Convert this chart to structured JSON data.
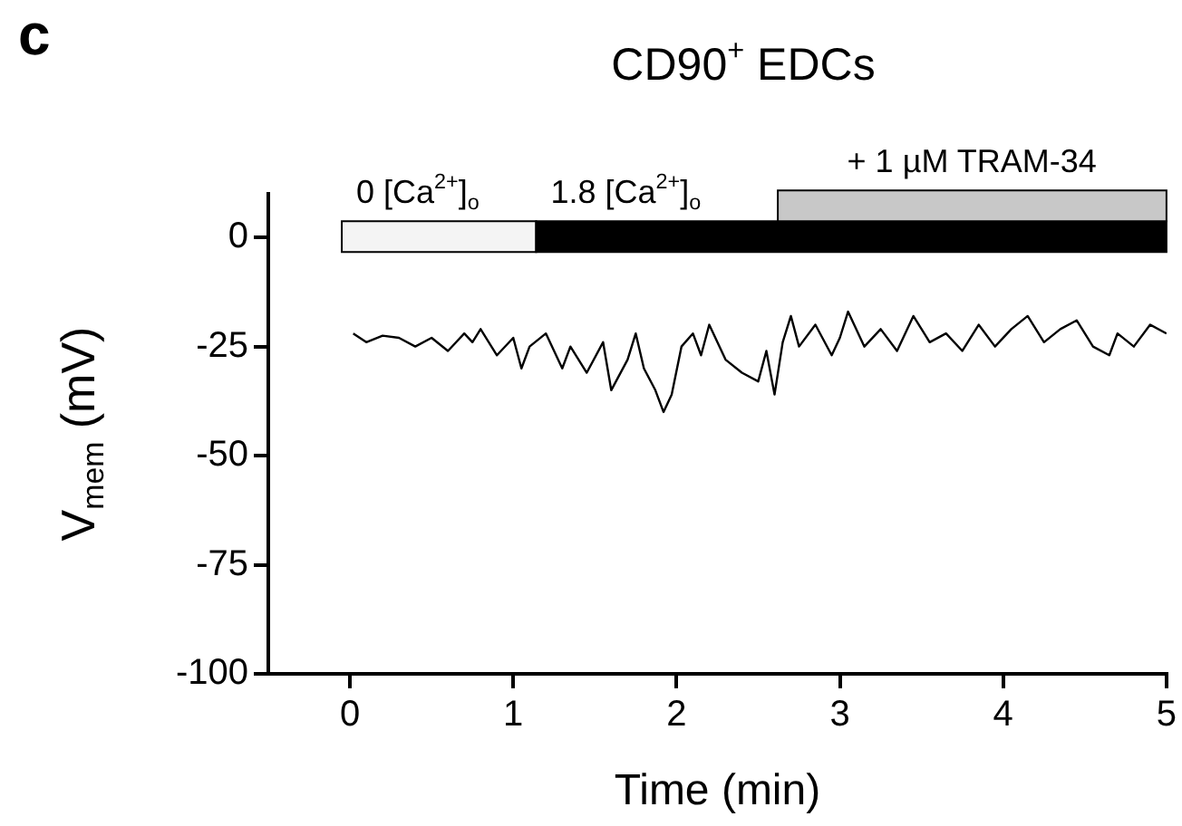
{
  "chart_data": {
    "type": "line",
    "title": "CD90$^{+}$ EDCs",
    "xlabel": "Time (min)",
    "ylabel": "V$_{mem}$ (mV)",
    "annotations": [
      "c"
    ],
    "x": [
      0.02,
      0.1,
      0.2,
      0.3,
      0.4,
      0.5,
      0.6,
      0.7,
      0.75,
      0.8,
      0.9,
      1.0,
      1.05,
      1.1,
      1.2,
      1.3,
      1.35,
      1.45,
      1.55,
      1.6,
      1.7,
      1.75,
      1.8,
      1.87,
      1.92,
      1.97,
      2.03,
      2.1,
      2.15,
      2.2,
      2.3,
      2.4,
      2.5,
      2.55,
      2.6,
      2.65,
      2.7,
      2.75,
      2.85,
      2.95,
      3.0,
      3.05,
      3.15,
      3.25,
      3.35,
      3.45,
      3.55,
      3.65,
      3.75,
      3.85,
      3.95,
      4.05,
      4.15,
      4.25,
      4.35,
      4.45,
      4.55,
      4.65,
      4.7,
      4.8,
      4.9,
      5.0
    ],
    "series": [
      {
        "color": "#000000",
        "values": [
          -22,
          -24,
          -22.5,
          -23,
          -25,
          -23,
          -26,
          -22,
          -24,
          -21,
          -27,
          -23,
          -30,
          -25,
          -22,
          -30,
          -25,
          -31,
          -24,
          -35,
          -28,
          -22,
          -30,
          -35,
          -40,
          -36,
          -25,
          -22,
          -27,
          -20,
          -28,
          -31,
          -33,
          -26,
          -36,
          -24,
          -18,
          -25,
          -20,
          -27,
          -23,
          -17,
          -25,
          -21,
          -26,
          -18,
          -24,
          -22,
          -26,
          -20,
          -25,
          -21,
          -18,
          -24,
          -21,
          -19,
          -25,
          -27,
          -22,
          -25,
          -20,
          -22
        ]
      }
    ],
    "xlim": [
      -0.5,
      5
    ],
    "xticks": [
      0,
      1,
      2,
      3,
      4,
      5
    ],
    "ylim": [
      -100,
      10
    ],
    "yticks": [
      0,
      -25,
      -50,
      -75,
      -100
    ],
    "grid": false,
    "legend": false,
    "marker": "none",
    "line_style": "solid",
    "bands": [
      {
        "axis": "x",
        "from": -0.05,
        "to": 1.14,
        "label": "0 [Ca$^{2+}$]$_{o}$",
        "color": "#f4f4f4"
      },
      {
        "axis": "x",
        "from": 1.14,
        "to": 5,
        "label": "1.8 [Ca$^{2+}$]$_{o}$",
        "color": "#000000"
      },
      {
        "axis": "x",
        "from": 2.62,
        "to": 5,
        "label": "+ 1 µM TRAM-34",
        "color": "#c8c8c8"
      }
    ]
  }
}
